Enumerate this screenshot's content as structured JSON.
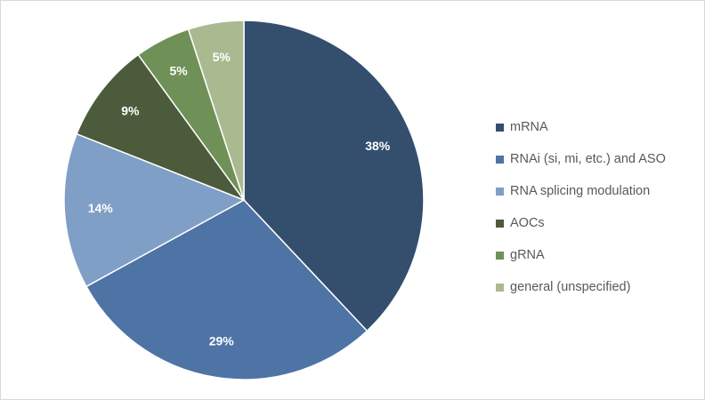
{
  "chart_data": {
    "type": "pie",
    "title": "",
    "legend_position": "right",
    "slices": [
      {
        "label": "mRNA",
        "value": 38,
        "display": "38%",
        "color": "#344e6e"
      },
      {
        "label": "RNAi (si, mi, etc.) and ASO",
        "value": 29,
        "display": "29%",
        "color": "#4e73a5"
      },
      {
        "label": "RNA splicing modulation",
        "value": 14,
        "display": "14%",
        "color": "#7f9fc6"
      },
      {
        "label": "AOCs",
        "value": 9,
        "display": "9%",
        "color": "#4c5b3b"
      },
      {
        "label": "gRNA",
        "value": 5,
        "display": "5%",
        "color": "#6f9057"
      },
      {
        "label": "general (unspecified)",
        "value": 5,
        "display": "5%",
        "color": "#a9ba91"
      }
    ]
  }
}
